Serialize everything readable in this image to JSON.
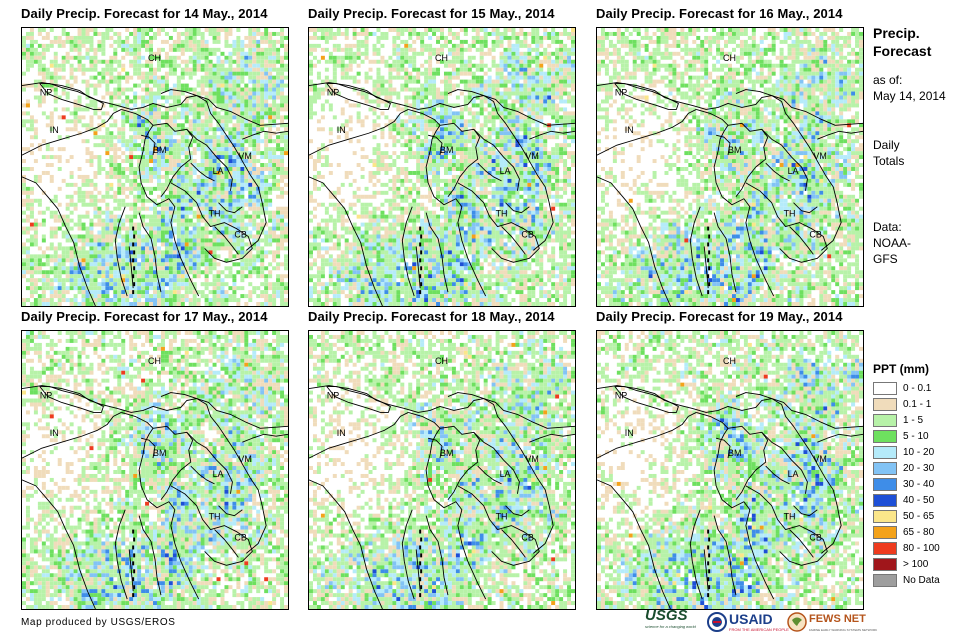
{
  "panels": [
    {
      "title": "Daily Precip. Forecast for 14 May., 2014",
      "seed": 11,
      "intensity": 1.0
    },
    {
      "title": "Daily Precip. Forecast for 15 May., 2014",
      "seed": 23,
      "intensity": 1.1
    },
    {
      "title": "Daily Precip. Forecast for 16 May., 2014",
      "seed": 37,
      "intensity": 1.05
    },
    {
      "title": "Daily Precip. Forecast for 17 May., 2014",
      "seed": 41,
      "intensity": 0.95
    },
    {
      "title": "Daily Precip. Forecast for 18 May., 2014",
      "seed": 53,
      "intensity": 1.0
    },
    {
      "title": "Daily Precip. Forecast for 19 May., 2014",
      "seed": 67,
      "intensity": 1.15
    }
  ],
  "map_labels": [
    "CH",
    "NP",
    "IN",
    "BM",
    "LA",
    "VM",
    "TH",
    "CB"
  ],
  "sidebar": {
    "heading_line1": "Precip.",
    "heading_line2": "Forecast",
    "asof_label": "as of:",
    "asof_date": "May 14, 2014",
    "totals_line1": "Daily",
    "totals_line2": "Totals",
    "data_label": "Data:",
    "data_line1": "NOAA-",
    "data_line2": "GFS"
  },
  "legend": {
    "title": "PPT (mm)",
    "items": [
      {
        "label": "0 - 0.1",
        "color": "#ffffff"
      },
      {
        "label": "0.1 - 1",
        "color": "#f0dcbb"
      },
      {
        "label": "1 - 5",
        "color": "#b7f2a8"
      },
      {
        "label": "5 - 10",
        "color": "#6ee05f"
      },
      {
        "label": "10 - 20",
        "color": "#b5ebfa"
      },
      {
        "label": "20 - 30",
        "color": "#82c3f5"
      },
      {
        "label": "30 - 40",
        "color": "#3e8de8"
      },
      {
        "label": "40 - 50",
        "color": "#1d4fd6"
      },
      {
        "label": "50 - 65",
        "color": "#fbe68a"
      },
      {
        "label": "65 - 80",
        "color": "#f4a21a"
      },
      {
        "label": "80 - 100",
        "color": "#ee3b1f"
      },
      {
        "label": "> 100",
        "color": "#a0161b"
      },
      {
        "label": "No Data",
        "color": "#9e9e9e"
      }
    ]
  },
  "footer": "Map produced by USGS/EROS",
  "logos": {
    "usgs": "USGS",
    "usgs_sub": "science for a changing world",
    "usaid": "USAID",
    "usaid_sub": "FROM THE AMERICAN PEOPLE",
    "fewsnet": "FEWS NET",
    "fewsnet_sub": "FAMINE EARLY WARNING SYSTEMS NETWORK"
  }
}
